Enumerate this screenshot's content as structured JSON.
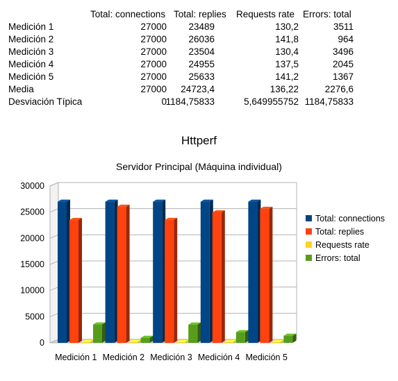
{
  "table": {
    "headers": [
      "Total: connections",
      "Total: replies",
      "Requests rate",
      "Errors: total"
    ],
    "rows": [
      {
        "label": "Medición 1",
        "values": [
          "27000",
          "23489",
          "130,2",
          "3511"
        ]
      },
      {
        "label": "Medición 2",
        "values": [
          "27000",
          "26036",
          "141,8",
          "964"
        ]
      },
      {
        "label": "Medición 3",
        "values": [
          "27000",
          "23504",
          "130,4",
          "3496"
        ]
      },
      {
        "label": "Medición 4",
        "values": [
          "27000",
          "24955",
          "137,5",
          "2045"
        ]
      },
      {
        "label": "Medición 5",
        "values": [
          "27000",
          "25633",
          "141,2",
          "1367"
        ]
      },
      {
        "label": "Media",
        "values": [
          "27000",
          "24723,4",
          "136,22",
          "2276,6"
        ]
      },
      {
        "label": "Desviación Típica",
        "values": [
          "0",
          "1184,75833",
          "5,649955752",
          "1184,75833"
        ]
      }
    ]
  },
  "chart_data": {
    "type": "bar",
    "title": "Httperf",
    "subtitle": "Servidor Principal (Máquina individual)",
    "categories": [
      "Medición 1",
      "Medición 2",
      "Medición 3",
      "Medición 4",
      "Medición 5"
    ],
    "series": [
      {
        "name": "Total: connections",
        "color": "#004586",
        "values": [
          27000,
          27000,
          27000,
          27000,
          27000
        ]
      },
      {
        "name": "Total: replies",
        "color": "#ff420e",
        "values": [
          23489,
          26036,
          23504,
          24955,
          25633
        ]
      },
      {
        "name": "Requests rate",
        "color": "#ffd320",
        "values": [
          130.2,
          141.8,
          130.4,
          137.5,
          141.2
        ]
      },
      {
        "name": "Errors: total",
        "color": "#579d1c",
        "values": [
          3511,
          964,
          3496,
          2045,
          1367
        ]
      }
    ],
    "ylim": [
      0,
      30000
    ],
    "yticks": [
      0,
      5000,
      10000,
      15000,
      20000,
      25000,
      30000
    ],
    "grid": true,
    "legend": "right"
  }
}
